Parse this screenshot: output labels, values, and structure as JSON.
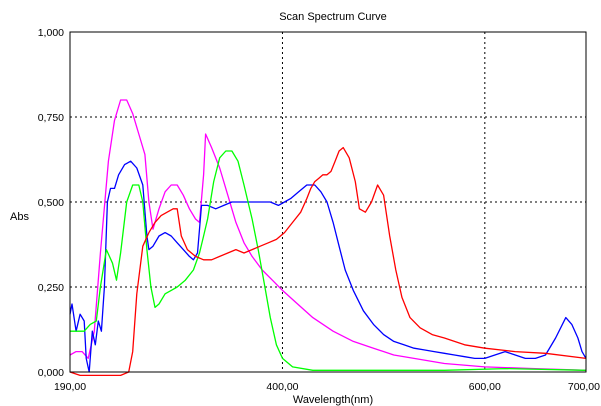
{
  "chart_data": {
    "type": "line",
    "title": "Scan Spectrum Curve",
    "xlabel": "Wavelength(nm)",
    "ylabel": "Abs",
    "xlim": [
      190,
      700
    ],
    "ylim": [
      0,
      1
    ],
    "grid": true,
    "grid_style": "dotted",
    "xticks": [
      190,
      400,
      600,
      700
    ],
    "xtick_labels": [
      "190,00",
      "400,00",
      "600,00",
      "700,00"
    ],
    "yticks": [
      0,
      0.25,
      0.5,
      0.75,
      1.0
    ],
    "ytick_labels": [
      "0,000",
      "0,250",
      "0,500",
      "0,750",
      "1,000"
    ],
    "series": [
      {
        "color": "#ff00ff",
        "points": [
          [
            190,
            0.05
          ],
          [
            196,
            0.06
          ],
          [
            202,
            0.06
          ],
          [
            208,
            0.04
          ],
          [
            214,
            0.12
          ],
          [
            220,
            0.35
          ],
          [
            228,
            0.62
          ],
          [
            234,
            0.74
          ],
          [
            240,
            0.8
          ],
          [
            246,
            0.8
          ],
          [
            252,
            0.76
          ],
          [
            258,
            0.7
          ],
          [
            264,
            0.64
          ],
          [
            268,
            0.5
          ],
          [
            272,
            0.42
          ],
          [
            278,
            0.48
          ],
          [
            284,
            0.53
          ],
          [
            290,
            0.55
          ],
          [
            296,
            0.55
          ],
          [
            302,
            0.52
          ],
          [
            308,
            0.48
          ],
          [
            314,
            0.45
          ],
          [
            318,
            0.44
          ],
          [
            322,
            0.58
          ],
          [
            324,
            0.7
          ],
          [
            330,
            0.66
          ],
          [
            338,
            0.6
          ],
          [
            346,
            0.52
          ],
          [
            354,
            0.44
          ],
          [
            362,
            0.38
          ],
          [
            370,
            0.34
          ],
          [
            380,
            0.3
          ],
          [
            390,
            0.27
          ],
          [
            400,
            0.24
          ],
          [
            415,
            0.2
          ],
          [
            430,
            0.16
          ],
          [
            450,
            0.12
          ],
          [
            470,
            0.09
          ],
          [
            490,
            0.07
          ],
          [
            510,
            0.05
          ],
          [
            530,
            0.04
          ],
          [
            560,
            0.025
          ],
          [
            600,
            0.015
          ],
          [
            650,
            0.01
          ],
          [
            700,
            0.005
          ]
        ]
      },
      {
        "color": "#0000ff",
        "points": [
          [
            190,
            0.17
          ],
          [
            192,
            0.2
          ],
          [
            196,
            0.12
          ],
          [
            200,
            0.17
          ],
          [
            204,
            0.15
          ],
          [
            206,
            0.04
          ],
          [
            209,
            0.0
          ],
          [
            212,
            0.12
          ],
          [
            215,
            0.08
          ],
          [
            218,
            0.15
          ],
          [
            221,
            0.12
          ],
          [
            224,
            0.25
          ],
          [
            227,
            0.5
          ],
          [
            230,
            0.54
          ],
          [
            234,
            0.54
          ],
          [
            238,
            0.58
          ],
          [
            244,
            0.61
          ],
          [
            250,
            0.62
          ],
          [
            256,
            0.6
          ],
          [
            262,
            0.55
          ],
          [
            266,
            0.4
          ],
          [
            268,
            0.36
          ],
          [
            272,
            0.37
          ],
          [
            278,
            0.4
          ],
          [
            284,
            0.41
          ],
          [
            290,
            0.4
          ],
          [
            296,
            0.38
          ],
          [
            302,
            0.36
          ],
          [
            308,
            0.34
          ],
          [
            312,
            0.33
          ],
          [
            316,
            0.35
          ],
          [
            320,
            0.49
          ],
          [
            326,
            0.49
          ],
          [
            334,
            0.48
          ],
          [
            342,
            0.49
          ],
          [
            350,
            0.5
          ],
          [
            358,
            0.5
          ],
          [
            366,
            0.5
          ],
          [
            374,
            0.5
          ],
          [
            380,
            0.5
          ],
          [
            388,
            0.5
          ],
          [
            396,
            0.49
          ],
          [
            402,
            0.5
          ],
          [
            408,
            0.51
          ],
          [
            416,
            0.53
          ],
          [
            424,
            0.55
          ],
          [
            432,
            0.55
          ],
          [
            438,
            0.53
          ],
          [
            444,
            0.5
          ],
          [
            450,
            0.44
          ],
          [
            456,
            0.37
          ],
          [
            462,
            0.3
          ],
          [
            470,
            0.24
          ],
          [
            480,
            0.18
          ],
          [
            490,
            0.14
          ],
          [
            500,
            0.11
          ],
          [
            510,
            0.09
          ],
          [
            520,
            0.08
          ],
          [
            530,
            0.07
          ],
          [
            540,
            0.065
          ],
          [
            550,
            0.06
          ],
          [
            560,
            0.055
          ],
          [
            570,
            0.05
          ],
          [
            580,
            0.045
          ],
          [
            590,
            0.04
          ],
          [
            600,
            0.04
          ],
          [
            610,
            0.05
          ],
          [
            620,
            0.06
          ],
          [
            630,
            0.05
          ],
          [
            640,
            0.04
          ],
          [
            650,
            0.04
          ],
          [
            660,
            0.05
          ],
          [
            670,
            0.1
          ],
          [
            680,
            0.16
          ],
          [
            686,
            0.14
          ],
          [
            692,
            0.1
          ],
          [
            696,
            0.06
          ],
          [
            700,
            0.04
          ]
        ]
      },
      {
        "color": "#00ff00",
        "points": [
          [
            190,
            0.12
          ],
          [
            196,
            0.12
          ],
          [
            204,
            0.12
          ],
          [
            210,
            0.14
          ],
          [
            216,
            0.15
          ],
          [
            220,
            0.25
          ],
          [
            226,
            0.36
          ],
          [
            232,
            0.32
          ],
          [
            236,
            0.27
          ],
          [
            240,
            0.35
          ],
          [
            246,
            0.5
          ],
          [
            252,
            0.55
          ],
          [
            258,
            0.55
          ],
          [
            262,
            0.5
          ],
          [
            266,
            0.36
          ],
          [
            270,
            0.25
          ],
          [
            274,
            0.19
          ],
          [
            278,
            0.2
          ],
          [
            284,
            0.23
          ],
          [
            290,
            0.24
          ],
          [
            296,
            0.25
          ],
          [
            304,
            0.27
          ],
          [
            312,
            0.3
          ],
          [
            318,
            0.35
          ],
          [
            322,
            0.4
          ],
          [
            326,
            0.45
          ],
          [
            332,
            0.56
          ],
          [
            338,
            0.63
          ],
          [
            344,
            0.65
          ],
          [
            350,
            0.65
          ],
          [
            356,
            0.62
          ],
          [
            362,
            0.55
          ],
          [
            370,
            0.45
          ],
          [
            376,
            0.36
          ],
          [
            382,
            0.26
          ],
          [
            388,
            0.16
          ],
          [
            394,
            0.08
          ],
          [
            400,
            0.04
          ],
          [
            410,
            0.015
          ],
          [
            430,
            0.005
          ],
          [
            500,
            0.005
          ],
          [
            560,
            0.005
          ],
          [
            620,
            0.01
          ],
          [
            700,
            0.005
          ]
        ]
      },
      {
        "color": "#ff0000",
        "points": [
          [
            190,
            0.0
          ],
          [
            200,
            -0.01
          ],
          [
            240,
            -0.01
          ],
          [
            248,
            0.0
          ],
          [
            252,
            0.06
          ],
          [
            256,
            0.23
          ],
          [
            262,
            0.37
          ],
          [
            268,
            0.41
          ],
          [
            274,
            0.44
          ],
          [
            280,
            0.46
          ],
          [
            286,
            0.47
          ],
          [
            292,
            0.48
          ],
          [
            296,
            0.48
          ],
          [
            300,
            0.4
          ],
          [
            306,
            0.36
          ],
          [
            314,
            0.34
          ],
          [
            322,
            0.33
          ],
          [
            330,
            0.33
          ],
          [
            338,
            0.34
          ],
          [
            346,
            0.35
          ],
          [
            354,
            0.36
          ],
          [
            362,
            0.35
          ],
          [
            370,
            0.36
          ],
          [
            378,
            0.37
          ],
          [
            386,
            0.38
          ],
          [
            394,
            0.39
          ],
          [
            402,
            0.41
          ],
          [
            410,
            0.44
          ],
          [
            418,
            0.47
          ],
          [
            424,
            0.51
          ],
          [
            428,
            0.54
          ],
          [
            432,
            0.56
          ],
          [
            436,
            0.57
          ],
          [
            440,
            0.58
          ],
          [
            444,
            0.58
          ],
          [
            448,
            0.59
          ],
          [
            452,
            0.62
          ],
          [
            456,
            0.65
          ],
          [
            460,
            0.66
          ],
          [
            466,
            0.63
          ],
          [
            472,
            0.56
          ],
          [
            476,
            0.48
          ],
          [
            482,
            0.47
          ],
          [
            488,
            0.5
          ],
          [
            494,
            0.55
          ],
          [
            500,
            0.52
          ],
          [
            506,
            0.4
          ],
          [
            512,
            0.3
          ],
          [
            518,
            0.22
          ],
          [
            526,
            0.16
          ],
          [
            536,
            0.13
          ],
          [
            548,
            0.11
          ],
          [
            560,
            0.1
          ],
          [
            580,
            0.08
          ],
          [
            600,
            0.07
          ],
          [
            630,
            0.06
          ],
          [
            660,
            0.055
          ],
          [
            700,
            0.04
          ]
        ]
      }
    ]
  }
}
